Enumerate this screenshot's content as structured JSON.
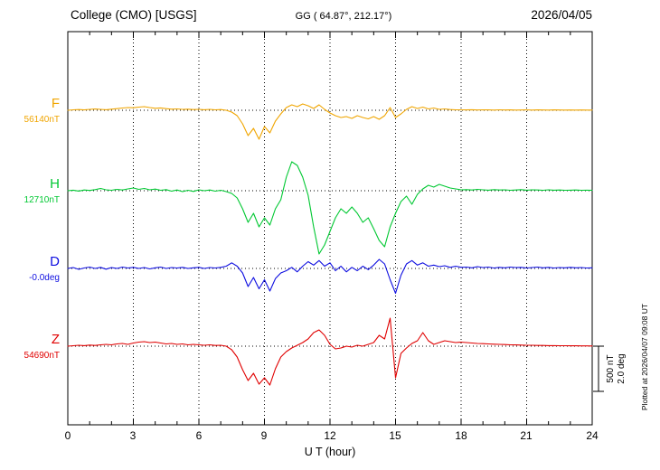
{
  "header": {
    "station": "College (CMO)  [USGS]",
    "coords": "GG ( 64.87°, 212.17°)",
    "date": "2026/04/05"
  },
  "axis": {
    "xlabel": "U T (hour)",
    "tick_labels": [
      "0",
      "3",
      "6",
      "9",
      "12",
      "15",
      "18",
      "21",
      "24"
    ]
  },
  "scale_bar": {
    "line1": "500 nT",
    "line2": "2.0 deg"
  },
  "plot_note": "Plotted at 2026/04/07 09:08 UT",
  "chart_data": {
    "type": "line",
    "title": "College (CMO) [USGS] magnetogram",
    "xlabel": "U T (hour)",
    "x_unit": "hour",
    "x_start": 0,
    "x_end": 24,
    "x_step": 0.25,
    "x_ticks": [
      0,
      3,
      6,
      9,
      12,
      15,
      18,
      21,
      24
    ],
    "grid": "dotted vertical at 3h, dotted horizontal at each trace baseline",
    "scale_reference": {
      "nT_per_division": 500,
      "deg_per_division": 2.0
    },
    "series": [
      {
        "name": "F",
        "unit": "nT",
        "base_value": 56140,
        "base_value_label": "56140nT",
        "color": "#f0a500",
        "offsets": [
          0,
          5,
          8,
          4,
          10,
          14,
          10,
          6,
          12,
          18,
          25,
          30,
          28,
          35,
          40,
          30,
          22,
          26,
          18,
          12,
          15,
          10,
          12,
          8,
          10,
          6,
          10,
          5,
          8,
          0,
          -20,
          -60,
          -150,
          -280,
          -200,
          -320,
          -180,
          -250,
          -120,
          -40,
          30,
          60,
          40,
          70,
          50,
          20,
          60,
          10,
          -30,
          -60,
          -80,
          -70,
          -90,
          -60,
          -80,
          -95,
          -70,
          -100,
          -60,
          30,
          -80,
          -40,
          10,
          40,
          20,
          35,
          15,
          25,
          10,
          15,
          8,
          5,
          5,
          4,
          6,
          3,
          5,
          4,
          2,
          5,
          3,
          4,
          2,
          3,
          5,
          2,
          4,
          3,
          2,
          4,
          3,
          2,
          3,
          2,
          3,
          2,
          2
        ]
      },
      {
        "name": "H",
        "unit": "nT",
        "base_value": 12710,
        "base_value_label": "12710nT",
        "color": "#00c832",
        "offsets": [
          0,
          6,
          -4,
          8,
          3,
          12,
          25,
          10,
          5,
          15,
          8,
          20,
          30,
          15,
          25,
          10,
          18,
          5,
          12,
          -5,
          8,
          -10,
          5,
          -8,
          10,
          0,
          8,
          -5,
          5,
          -10,
          -30,
          -80,
          -200,
          -350,
          -250,
          -400,
          -300,
          -380,
          -200,
          -100,
          150,
          320,
          280,
          150,
          -50,
          -400,
          -700,
          -600,
          -450,
          -300,
          -200,
          -250,
          -180,
          -250,
          -350,
          -300,
          -420,
          -550,
          -620,
          -400,
          -250,
          -120,
          -60,
          -150,
          -40,
          20,
          60,
          40,
          70,
          50,
          30,
          20,
          10,
          12,
          8,
          15,
          10,
          6,
          12,
          8,
          10,
          5,
          8,
          12,
          6,
          10,
          8,
          5,
          10,
          6,
          8,
          5,
          6,
          8,
          5,
          6,
          5
        ]
      },
      {
        "name": "D",
        "unit": "deg",
        "base_value": -0.0,
        "base_value_label": "-0.0deg",
        "color": "#0d0de0",
        "offsets": [
          0,
          0.04,
          -0.04,
          0.02,
          0.06,
          0,
          0.05,
          -0.03,
          0.04,
          0,
          0.06,
          0.02,
          0.05,
          0,
          0.04,
          -0.02,
          0.03,
          0.06,
          0,
          0.04,
          0.02,
          0.05,
          0,
          0.03,
          0.05,
          0,
          0.04,
          0.02,
          0.05,
          0.1,
          0.25,
          0.1,
          -0.2,
          -0.8,
          -0.4,
          -0.9,
          -0.5,
          -1.0,
          -0.45,
          -0.2,
          -0.1,
          0.05,
          -0.15,
          0.1,
          0.3,
          0.15,
          0.35,
          0.1,
          0.25,
          -0.1,
          0.1,
          -0.15,
          0.05,
          -0.1,
          0.1,
          -0.05,
          0.15,
          0.4,
          0.2,
          -0.5,
          -1.1,
          -0.3,
          0.2,
          0.35,
          0.15,
          0.25,
          0.1,
          0.15,
          0.08,
          0.12,
          0.05,
          0.1,
          0.05,
          0.06,
          0.03,
          0.08,
          0.04,
          0.06,
          0.02,
          0.05,
          0.03,
          0.06,
          0.04,
          0.05,
          0.02,
          0.04,
          0.06,
          0.03,
          0.05,
          0.02,
          0.04,
          0.03,
          0.05,
          0.03,
          0.04,
          0.02,
          0.03
        ]
      },
      {
        "name": "Z",
        "unit": "nT",
        "base_value": 54690,
        "base_value_label": "54690nT",
        "color": "#e00000",
        "offsets": [
          0,
          5,
          10,
          6,
          12,
          8,
          15,
          20,
          15,
          25,
          30,
          20,
          35,
          45,
          50,
          40,
          45,
          35,
          25,
          30,
          20,
          25,
          15,
          20,
          15,
          10,
          15,
          8,
          10,
          0,
          -40,
          -120,
          -260,
          -380,
          -300,
          -420,
          -350,
          -430,
          -250,
          -120,
          -60,
          -20,
          10,
          40,
          80,
          150,
          180,
          120,
          20,
          -30,
          -20,
          0,
          -10,
          10,
          0,
          20,
          40,
          120,
          80,
          310,
          -350,
          -80,
          -20,
          30,
          60,
          150,
          60,
          20,
          40,
          60,
          50,
          40,
          45,
          40,
          35,
          30,
          28,
          25,
          22,
          20,
          18,
          15,
          14,
          12,
          10,
          10,
          8,
          8,
          6,
          6,
          5,
          5,
          4,
          4,
          3,
          3,
          2
        ]
      }
    ]
  }
}
